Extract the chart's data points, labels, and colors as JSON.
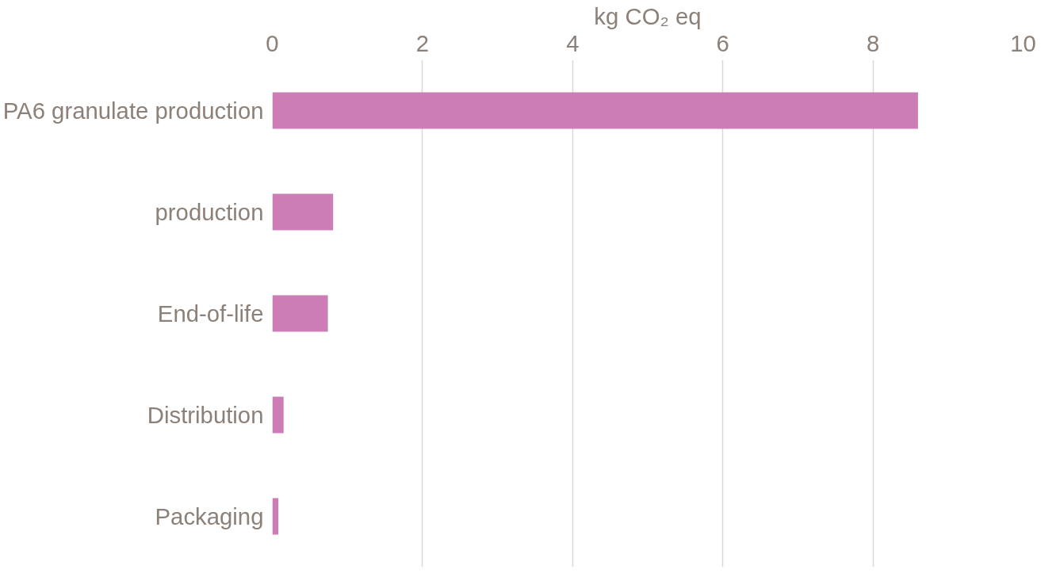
{
  "chart_data": {
    "type": "bar",
    "orientation": "horizontal",
    "xlabel": "kg CO₂ eq",
    "categories": [
      "PA6 granulate production",
      "production",
      "End-of-life",
      "Distribution",
      "Packaging"
    ],
    "values": [
      8.6,
      0.81,
      0.74,
      0.15,
      0.08
    ],
    "color": "#cc7db5",
    "xlim": [
      0,
      10
    ],
    "xticks": [
      0,
      2,
      4,
      6,
      8,
      10
    ],
    "grid": "x"
  }
}
